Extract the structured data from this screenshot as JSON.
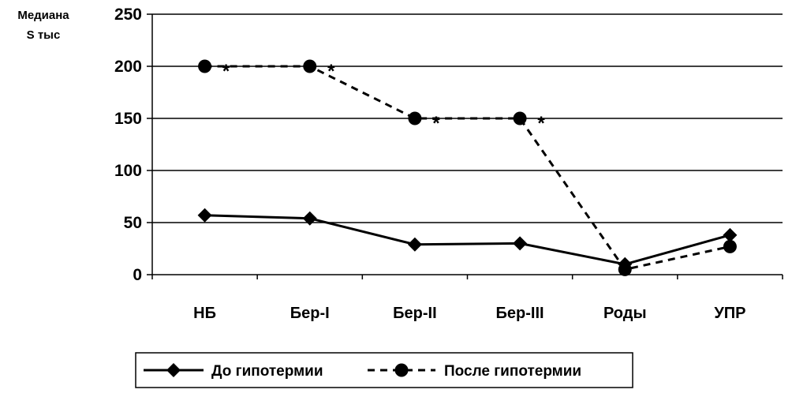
{
  "chart_data": {
    "type": "line",
    "title": "",
    "xlabel": "",
    "ylabel": [
      "Медиана",
      "S тыс"
    ],
    "ylim": [
      0,
      250
    ],
    "y_ticks": [
      "0",
      "50",
      "100",
      "150",
      "200",
      "250"
    ],
    "grid": "horizontal",
    "legend_position": "bottom",
    "categories": [
      "НБ",
      "Бер-I",
      "Бер-II",
      "Бер-III",
      "Роды",
      "УПР"
    ],
    "series": [
      {
        "name": "До гипотермии",
        "values": [
          57,
          54,
          29,
          30,
          10,
          38
        ],
        "marker": "diamond",
        "line_style": "solid",
        "color": "#000000"
      },
      {
        "name": "После гипотермии",
        "values": [
          200,
          200,
          150,
          150,
          5,
          27
        ],
        "marker": "circle",
        "line_style": "dashed",
        "color": "#000000"
      }
    ],
    "annotations": [
      {
        "text": "*",
        "series": 1,
        "category_index": 0
      },
      {
        "text": "*",
        "series": 1,
        "category_index": 1
      },
      {
        "text": "*",
        "series": 1,
        "category_index": 2
      },
      {
        "text": "*",
        "series": 1,
        "category_index": 3
      }
    ]
  }
}
